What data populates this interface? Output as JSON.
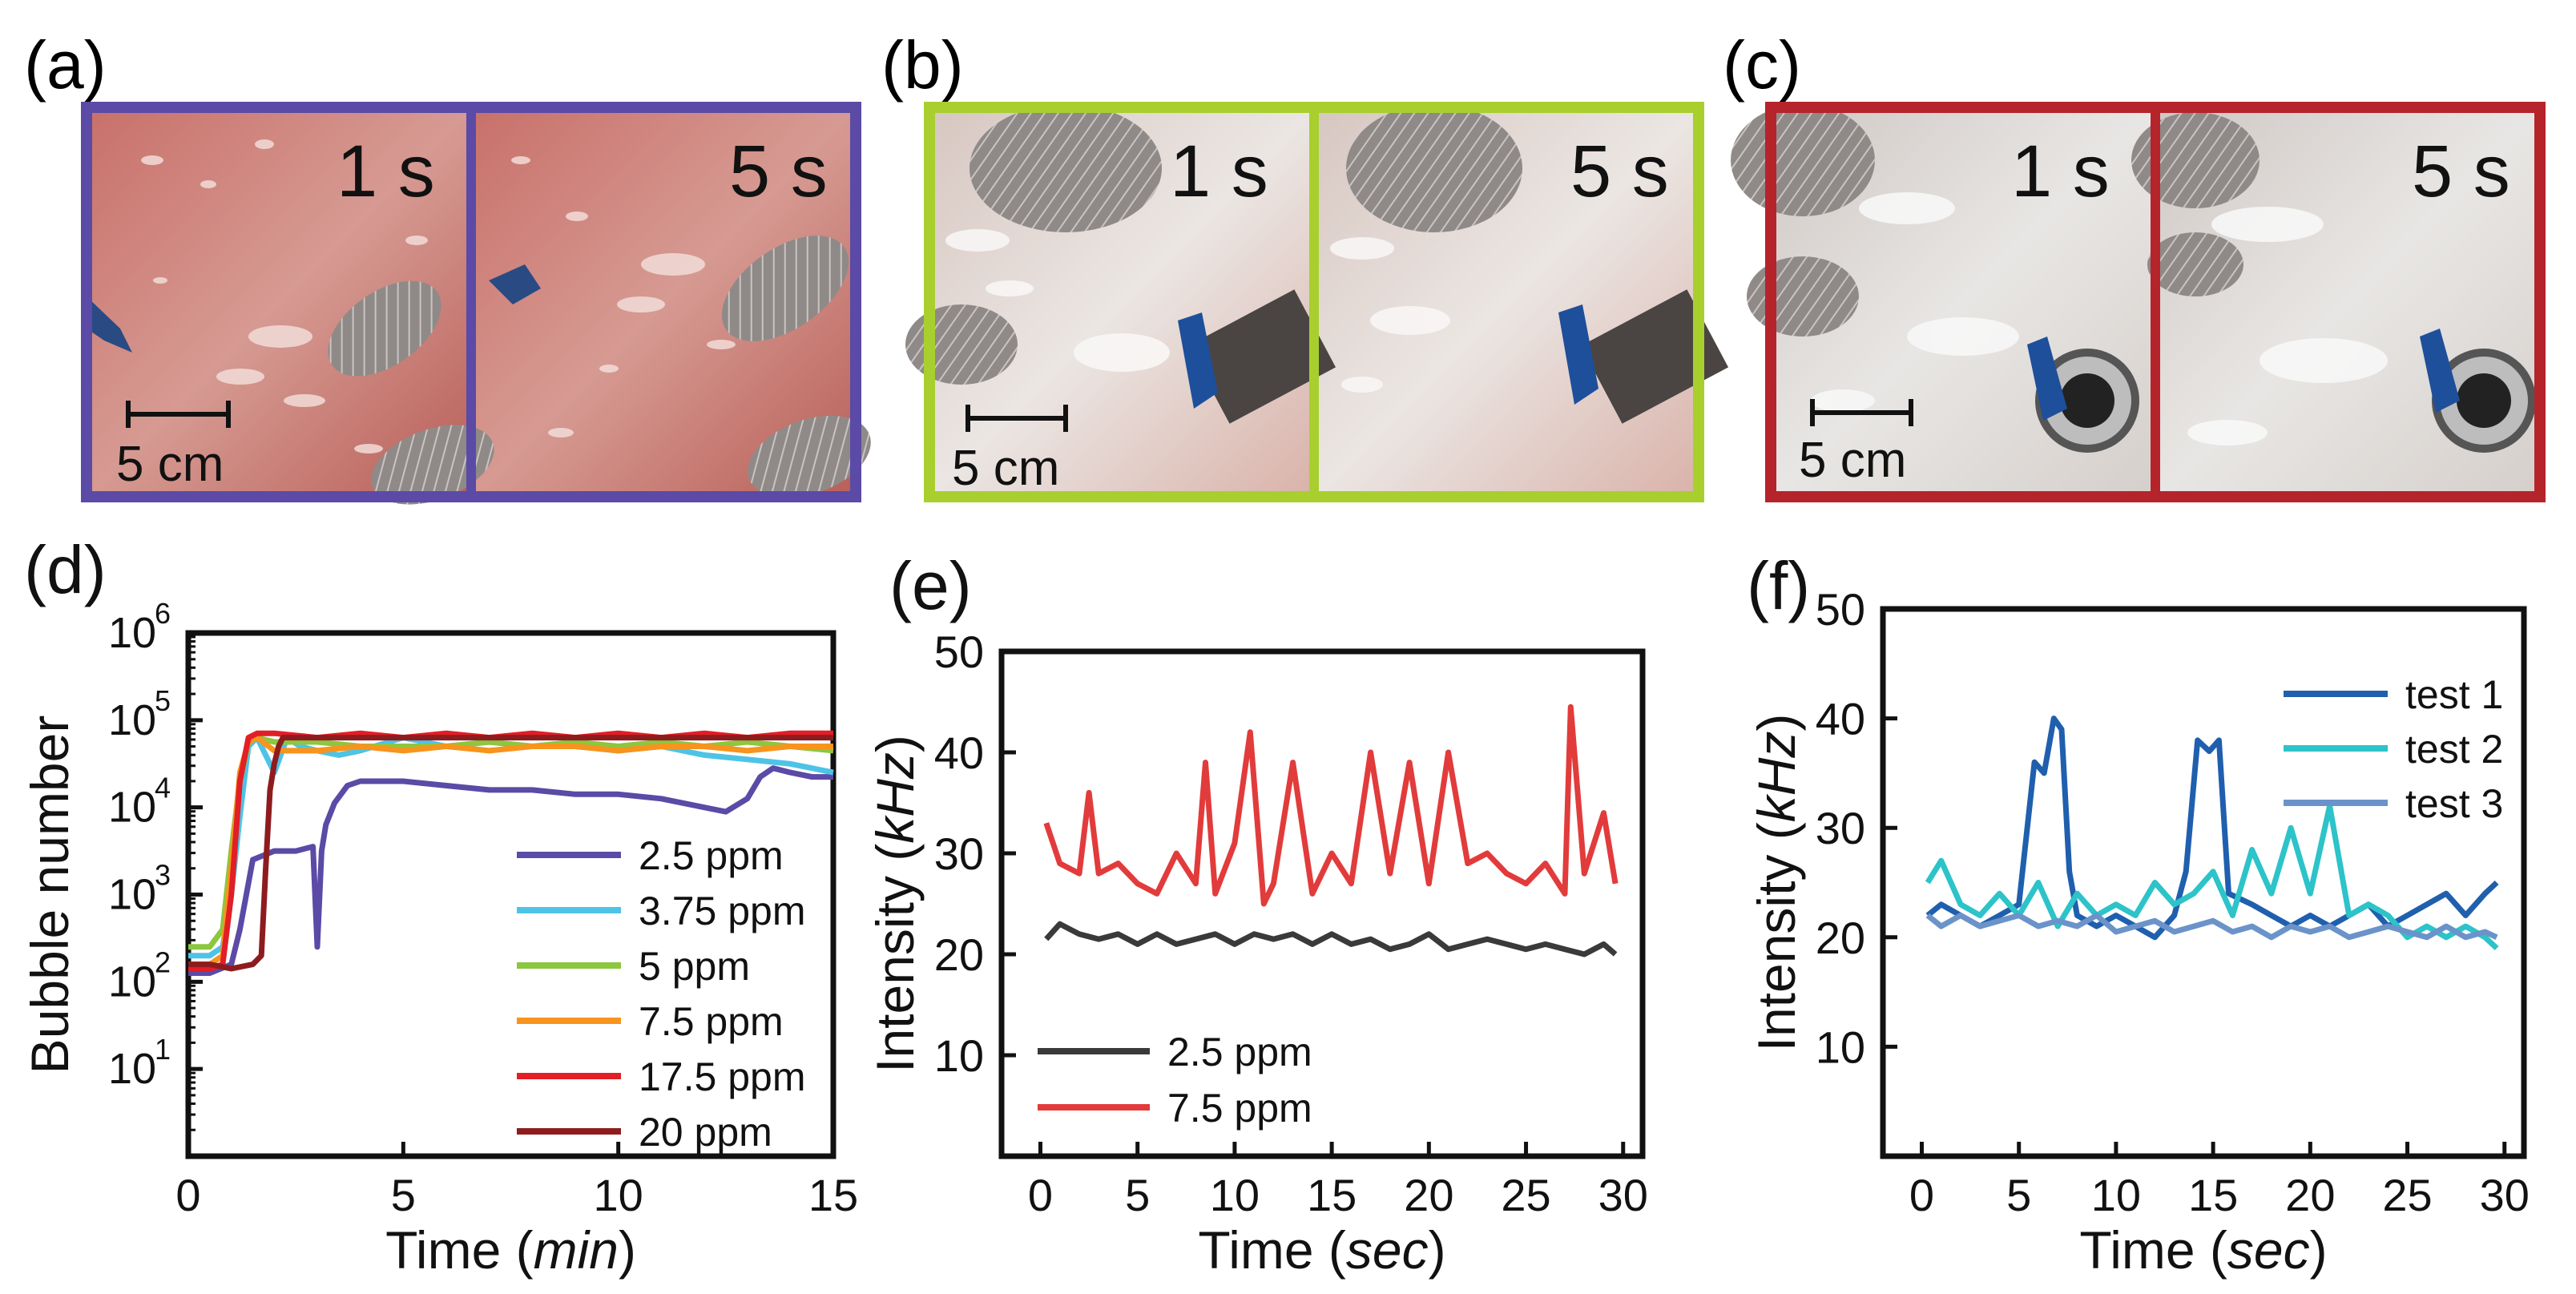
{
  "panels": {
    "a": {
      "label": "(a)",
      "frame_color": "#5b4aa6",
      "photo_left_time": "1 s",
      "photo_right_time": "5 s",
      "scale_label": "5 cm"
    },
    "b": {
      "label": "(b)",
      "frame_color": "#a8cf2e",
      "photo_left_time": "1 s",
      "photo_right_time": "5 s",
      "scale_label": "5 cm"
    },
    "c": {
      "label": "(c)",
      "frame_color": "#b5242b",
      "photo_left_time": "1 s",
      "photo_right_time": "5 s",
      "scale_label": "5 cm"
    }
  },
  "chart_data": [
    {
      "id": "d",
      "panel_label": "(d)",
      "type": "line",
      "xlabel_prefix": "Time (",
      "xlabel_unit": "min",
      "xlabel_suffix": ")",
      "ylabel": "Bubble number",
      "xlim": [
        0,
        15
      ],
      "ylim_log10": [
        0,
        6
      ],
      "xticks": [
        0,
        5,
        10,
        15
      ],
      "yticks": [
        "10",
        "10",
        "10",
        "10",
        "10",
        "10"
      ],
      "ytick_exponents": [
        "1",
        "2",
        "3",
        "4",
        "5",
        "6"
      ],
      "ytick_values_log10": [
        1,
        2,
        3,
        4,
        5,
        6
      ],
      "series": [
        {
          "name": "2.5 ppm",
          "color": "#5b4aa6",
          "x": [
            0,
            0.5,
            1,
            1.2,
            1.5,
            2,
            2.5,
            2.9,
            3.0,
            3.1,
            3.2,
            3.4,
            3.7,
            4,
            5,
            6,
            7,
            8,
            9,
            10,
            11,
            12,
            12.5,
            13,
            13.3,
            13.6,
            14,
            14.5,
            15
          ],
          "y": [
            2.1,
            2.1,
            2.2,
            2.6,
            3.4,
            3.5,
            3.5,
            3.55,
            2.4,
            3.5,
            3.8,
            4.05,
            4.25,
            4.3,
            4.3,
            4.25,
            4.2,
            4.2,
            4.15,
            4.15,
            4.1,
            4.0,
            3.95,
            4.1,
            4.35,
            4.45,
            4.4,
            4.35,
            4.35
          ]
        },
        {
          "name": "3.75 ppm",
          "color": "#4ec3e6",
          "x": [
            0,
            0.5,
            0.8,
            1.0,
            1.2,
            1.4,
            1.6,
            1.8,
            2.0,
            2.3,
            2.6,
            3.0,
            3.5,
            4,
            5,
            6,
            7,
            8,
            9,
            10,
            11,
            12,
            13,
            14,
            15
          ],
          "y": [
            2.3,
            2.3,
            2.4,
            3.0,
            3.9,
            4.7,
            4.8,
            4.6,
            4.4,
            4.8,
            4.7,
            4.65,
            4.6,
            4.65,
            4.8,
            4.7,
            4.75,
            4.7,
            4.7,
            4.65,
            4.7,
            4.6,
            4.55,
            4.5,
            4.4
          ]
        },
        {
          "name": "5 ppm",
          "color": "#8dc63f",
          "x": [
            0,
            0.5,
            0.8,
            1.0,
            1.2,
            1.4,
            1.6,
            2,
            3,
            4,
            5,
            6,
            7,
            8,
            9,
            10,
            11,
            12,
            13,
            14,
            15
          ],
          "y": [
            2.4,
            2.4,
            2.6,
            3.5,
            4.3,
            4.75,
            4.8,
            4.75,
            4.75,
            4.7,
            4.7,
            4.7,
            4.75,
            4.7,
            4.75,
            4.7,
            4.75,
            4.7,
            4.75,
            4.7,
            4.65
          ]
        },
        {
          "name": "7.5 ppm",
          "color": "#f7941d",
          "x": [
            0,
            0.5,
            0.8,
            1.0,
            1.2,
            1.4,
            1.6,
            2,
            3,
            4,
            5,
            6,
            7,
            8,
            9,
            10,
            11,
            12,
            13,
            14,
            15
          ],
          "y": [
            2.2,
            2.2,
            2.3,
            3.3,
            4.4,
            4.75,
            4.8,
            4.65,
            4.65,
            4.7,
            4.65,
            4.7,
            4.65,
            4.7,
            4.7,
            4.65,
            4.7,
            4.7,
            4.65,
            4.7,
            4.7
          ]
        },
        {
          "name": "17.5 ppm",
          "color": "#e21e26",
          "x": [
            0,
            0.5,
            0.8,
            1.0,
            1.2,
            1.4,
            1.6,
            2,
            3,
            4,
            5,
            6,
            7,
            8,
            9,
            10,
            11,
            12,
            13,
            14,
            15
          ],
          "y": [
            2.15,
            2.15,
            2.2,
            3.0,
            4.3,
            4.8,
            4.85,
            4.85,
            4.8,
            4.85,
            4.8,
            4.85,
            4.8,
            4.85,
            4.8,
            4.85,
            4.8,
            4.85,
            4.8,
            4.85,
            4.85
          ]
        },
        {
          "name": "20 ppm",
          "color": "#8e1c1f",
          "x": [
            0,
            0.5,
            1.0,
            1.5,
            1.7,
            1.8,
            1.9,
            2.0,
            2.1,
            2.2,
            2.4,
            3,
            4,
            5,
            6,
            7,
            8,
            9,
            10,
            11,
            12,
            13,
            14,
            15
          ],
          "y": [
            2.2,
            2.2,
            2.15,
            2.2,
            2.3,
            3.3,
            4.2,
            4.5,
            4.7,
            4.8,
            4.8,
            4.8,
            4.8,
            4.8,
            4.8,
            4.8,
            4.8,
            4.8,
            4.8,
            4.8,
            4.8,
            4.8,
            4.8,
            4.8
          ]
        }
      ]
    },
    {
      "id": "e",
      "panel_label": "(e)",
      "type": "line",
      "xlabel_prefix": "Time (",
      "xlabel_unit": "sec",
      "xlabel_suffix": ")",
      "ylabel_prefix": "Intensity (",
      "ylabel_unit": "kHz",
      "ylabel_suffix": ")",
      "xlim": [
        -2,
        31
      ],
      "ylim": [
        0,
        50
      ],
      "xticks": [
        0,
        5,
        10,
        15,
        20,
        25,
        30
      ],
      "yticks": [
        10,
        20,
        30,
        40,
        50
      ],
      "series": [
        {
          "name": "2.5 ppm",
          "color": "#3a3a3a",
          "x": [
            0.3,
            1,
            2,
            3,
            4,
            5,
            6,
            7,
            8,
            9,
            10,
            11,
            12,
            13,
            14,
            15,
            16,
            17,
            18,
            19,
            20,
            21,
            22,
            23,
            24,
            25,
            26,
            27,
            28,
            29,
            29.6
          ],
          "y": [
            21.5,
            23,
            22,
            21.5,
            22,
            21,
            22,
            21,
            21.5,
            22,
            21,
            22,
            21.5,
            22,
            21,
            22,
            21,
            21.5,
            20.5,
            21,
            22,
            20.5,
            21,
            21.5,
            21,
            20.5,
            21,
            20.5,
            20,
            21,
            20
          ]
        },
        {
          "name": "7.5 ppm",
          "color": "#e23b3b",
          "x": [
            0.3,
            1,
            2,
            2.5,
            3,
            4,
            5,
            6,
            7,
            8,
            8.5,
            9,
            10,
            10.8,
            11.5,
            12,
            13,
            14,
            15,
            16,
            17,
            18,
            19,
            20,
            21,
            22,
            23,
            24,
            25,
            26,
            27,
            27.3,
            28,
            29,
            29.6
          ],
          "y": [
            33,
            29,
            28,
            36,
            28,
            29,
            27,
            26,
            30,
            27,
            39,
            26,
            31,
            42,
            25,
            27,
            39,
            26,
            30,
            27,
            40,
            28,
            39,
            27,
            40,
            29,
            30,
            28,
            27,
            29,
            26,
            44.5,
            28,
            34,
            27
          ]
        }
      ]
    },
    {
      "id": "f",
      "panel_label": "(f)",
      "type": "line",
      "xlabel_prefix": "Time (",
      "xlabel_unit": "sec",
      "xlabel_suffix": ")",
      "ylabel_prefix": "Intensity (",
      "ylabel_unit": "kHz",
      "ylabel_suffix": ")",
      "xlim": [
        -2,
        31
      ],
      "ylim": [
        0,
        50
      ],
      "xticks": [
        0,
        5,
        10,
        15,
        20,
        25,
        30
      ],
      "yticks": [
        10,
        20,
        30,
        40,
        50
      ],
      "series": [
        {
          "name": "test 1",
          "color": "#1f5fae",
          "x": [
            0.3,
            1,
            2,
            3,
            4,
            5,
            5.8,
            6.3,
            6.8,
            7.2,
            7.6,
            8,
            9,
            10,
            11,
            12,
            13,
            13.6,
            14.2,
            14.8,
            15.3,
            15.8,
            17,
            18,
            19,
            20,
            21,
            22,
            23,
            24,
            25,
            26,
            27,
            28,
            29,
            29.6
          ],
          "y": [
            22,
            23,
            22,
            21,
            22,
            23,
            36,
            35,
            40,
            39,
            26,
            22,
            21,
            22,
            21,
            20,
            22,
            26,
            38,
            37,
            38,
            24,
            23,
            22,
            21,
            22,
            21,
            22,
            23,
            21,
            22,
            23,
            24,
            22,
            24,
            25
          ]
        },
        {
          "name": "test 2",
          "color": "#2cc3c9",
          "x": [
            0.3,
            1,
            2,
            3,
            4,
            5,
            6,
            7,
            8,
            9,
            10,
            11,
            12,
            13,
            14,
            15,
            16,
            17,
            18,
            19,
            20,
            21,
            22,
            23,
            24,
            25,
            26,
            27,
            28,
            29,
            29.6
          ],
          "y": [
            25,
            27,
            23,
            22,
            24,
            22,
            25,
            21,
            24,
            22,
            23,
            22,
            25,
            23,
            24,
            26,
            22,
            28,
            24,
            30,
            24,
            32,
            22,
            23,
            22,
            20,
            21,
            20,
            21,
            20,
            19
          ]
        },
        {
          "name": "test 3",
          "color": "#6b93c9",
          "x": [
            0.3,
            1,
            2,
            3,
            4,
            5,
            6,
            7,
            8,
            9,
            10,
            11,
            12,
            13,
            14,
            15,
            16,
            17,
            18,
            19,
            20,
            21,
            22,
            23,
            24,
            25,
            26,
            27,
            28,
            29,
            29.6
          ],
          "y": [
            22,
            21,
            22,
            21,
            21.5,
            22,
            21,
            21.5,
            21,
            22,
            20.5,
            21,
            21.5,
            20.5,
            21,
            21.5,
            20.5,
            21,
            20,
            21,
            20.5,
            21,
            20,
            20.5,
            21,
            20.5,
            20,
            21,
            20,
            20.5,
            20
          ]
        }
      ]
    }
  ]
}
